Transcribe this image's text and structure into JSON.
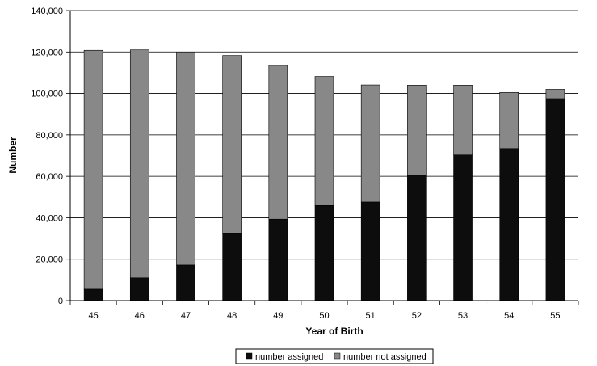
{
  "chart_data": {
    "type": "bar",
    "stacked": true,
    "categories": [
      "45",
      "46",
      "47",
      "48",
      "49",
      "50",
      "51",
      "52",
      "53",
      "54",
      "55"
    ],
    "series": [
      {
        "name": "number assigned",
        "color": "#0d0d0d",
        "values": [
          5500,
          11000,
          17200,
          32300,
          39300,
          45900,
          47600,
          60500,
          70300,
          73400,
          97500
        ]
      },
      {
        "name": "number not assigned",
        "color": "#888888",
        "values": [
          115300,
          110000,
          102800,
          86000,
          74200,
          62300,
          56500,
          43500,
          33700,
          27100,
          4500
        ]
      }
    ],
    "xlabel": "Year of Birth",
    "ylabel": "Number",
    "ylim": [
      0,
      140000
    ],
    "yticks": [
      0,
      20000,
      40000,
      60000,
      80000,
      100000,
      120000,
      140000
    ],
    "ytick_labels": [
      "0",
      "20,000",
      "40,000",
      "60,000",
      "80,000",
      "100,000",
      "120,000",
      "140,000"
    ],
    "grid": "horizontal",
    "legend_position": "bottom-center"
  }
}
